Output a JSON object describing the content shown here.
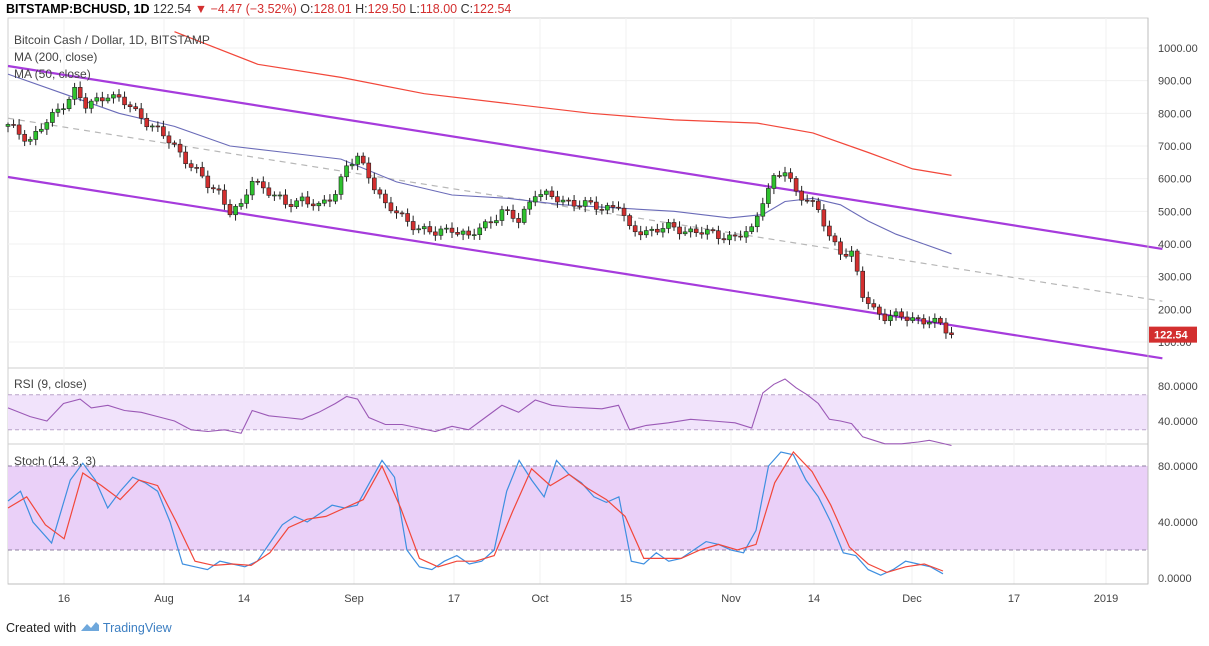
{
  "header": {
    "symbol": "BITSTAMP:BCHUSD, 1D",
    "last": "122.54",
    "change": "▼ −4.47 (−3.52%)",
    "open_label": "O:",
    "open": "128.01",
    "high_label": "H:",
    "high": "129.50",
    "low_label": "L:",
    "low": "118.00",
    "close_label": "C:",
    "close": "122.54"
  },
  "legend": {
    "title": "Bitcoin Cash / Dollar, 1D, BITSTAMP",
    "ma200": "MA (200, close)",
    "ma50": "MA (50, close)",
    "rsi": "RSI (9, close)",
    "stoch": "Stoch (14, 3, 3)"
  },
  "footer": {
    "created_with": "Created with",
    "brand": "TradingView"
  },
  "colors": {
    "up": "#2ec22e",
    "down": "#d32f2f",
    "channel": "#a63bdc",
    "ma200": "#f2473a",
    "ma50": "#6a6bb8",
    "rsi": "#9b59b6",
    "stoch_k": "#3e8fe0",
    "stoch_d": "#f2473a",
    "band_fill": "#f1e3fb",
    "stoch_fill": "#ead0f8",
    "last_price_bg": "#d32f2f"
  },
  "chart_data": {
    "type": "candlestick",
    "x_ticks": [
      "16",
      "Aug",
      "14",
      "Sep",
      "17",
      "Oct",
      "15",
      "Nov",
      "14",
      "Dec",
      "17",
      "2019"
    ],
    "y_ticks": [
      "1000.00",
      "900.00",
      "800.00",
      "700.00",
      "600.00",
      "500.00",
      "400.00",
      "300.00",
      "200.00",
      "100.00"
    ],
    "last_price_label": "122.54",
    "price_range": [
      80,
      1050
    ],
    "rsi_ticks": [
      "80.0000",
      "40.0000"
    ],
    "stoch_ticks": [
      "80.0000",
      "40.0000",
      "0.0000"
    ],
    "price_path": [
      [
        0,
        760
      ],
      [
        4,
        720
      ],
      [
        8,
        790
      ],
      [
        12,
        870
      ],
      [
        14,
        820
      ],
      [
        18,
        860
      ],
      [
        22,
        820
      ],
      [
        26,
        760
      ],
      [
        30,
        700
      ],
      [
        33,
        640
      ],
      [
        36,
        580
      ],
      [
        38,
        560
      ],
      [
        40,
        500
      ],
      [
        42,
        510
      ],
      [
        44,
        600
      ],
      [
        47,
        560
      ],
      [
        50,
        520
      ],
      [
        53,
        540
      ],
      [
        56,
        510
      ],
      [
        59,
        560
      ],
      [
        61,
        640
      ],
      [
        63,
        660
      ],
      [
        65,
        610
      ],
      [
        68,
        520
      ],
      [
        71,
        480
      ],
      [
        74,
        450
      ],
      [
        77,
        430
      ],
      [
        80,
        450
      ],
      [
        83,
        420
      ],
      [
        86,
        460
      ],
      [
        89,
        500
      ],
      [
        92,
        470
      ],
      [
        95,
        560
      ],
      [
        98,
        540
      ],
      [
        101,
        530
      ],
      [
        104,
        520
      ],
      [
        107,
        510
      ],
      [
        110,
        520
      ],
      [
        112,
        440
      ],
      [
        115,
        440
      ],
      [
        119,
        450
      ],
      [
        123,
        440
      ],
      [
        127,
        430
      ],
      [
        131,
        420
      ],
      [
        134,
        440
      ],
      [
        136,
        540
      ],
      [
        138,
        600
      ],
      [
        140,
        620
      ],
      [
        142,
        560
      ],
      [
        144,
        540
      ],
      [
        146,
        500
      ],
      [
        148,
        420
      ],
      [
        150,
        380
      ],
      [
        152,
        370
      ],
      [
        154,
        240
      ],
      [
        156,
        200
      ],
      [
        158,
        180
      ],
      [
        161,
        175
      ],
      [
        164,
        170
      ],
      [
        166,
        165
      ],
      [
        168,
        150
      ],
      [
        170,
        123
      ]
    ],
    "ma200": [
      [
        30,
        1050
      ],
      [
        45,
        950
      ],
      [
        60,
        910
      ],
      [
        75,
        860
      ],
      [
        90,
        830
      ],
      [
        105,
        800
      ],
      [
        120,
        780
      ],
      [
        135,
        770
      ],
      [
        145,
        740
      ],
      [
        155,
        680
      ],
      [
        163,
        630
      ],
      [
        170,
        610
      ]
    ],
    "ma50": [
      [
        0,
        920
      ],
      [
        10,
        860
      ],
      [
        20,
        800
      ],
      [
        30,
        760
      ],
      [
        40,
        700
      ],
      [
        50,
        680
      ],
      [
        60,
        660
      ],
      [
        70,
        590
      ],
      [
        80,
        550
      ],
      [
        90,
        540
      ],
      [
        100,
        520
      ],
      [
        110,
        510
      ],
      [
        120,
        500
      ],
      [
        130,
        480
      ],
      [
        136,
        490
      ],
      [
        140,
        530
      ],
      [
        145,
        540
      ],
      [
        150,
        520
      ],
      [
        155,
        470
      ],
      [
        160,
        430
      ],
      [
        165,
        400
      ],
      [
        170,
        370
      ]
    ],
    "channel_upper": [
      [
        0,
        945
      ],
      [
        208,
        385
      ]
    ],
    "channel_lower": [
      [
        0,
        605
      ],
      [
        208,
        50
      ]
    ],
    "dashed_mid": [
      [
        0,
        785
      ],
      [
        208,
        225
      ]
    ],
    "rsi_band": [
      30,
      70
    ],
    "rsi": [
      [
        0,
        55
      ],
      [
        4,
        45
      ],
      [
        7,
        40
      ],
      [
        10,
        60
      ],
      [
        13,
        65
      ],
      [
        15,
        55
      ],
      [
        18,
        58
      ],
      [
        21,
        52
      ],
      [
        24,
        50
      ],
      [
        27,
        45
      ],
      [
        30,
        40
      ],
      [
        33,
        30
      ],
      [
        36,
        28
      ],
      [
        39,
        30
      ],
      [
        42,
        26
      ],
      [
        44,
        52
      ],
      [
        47,
        46
      ],
      [
        50,
        44
      ],
      [
        53,
        42
      ],
      [
        56,
        50
      ],
      [
        59,
        60
      ],
      [
        61,
        68
      ],
      [
        63,
        65
      ],
      [
        65,
        44
      ],
      [
        68,
        36
      ],
      [
        71,
        36
      ],
      [
        74,
        32
      ],
      [
        77,
        28
      ],
      [
        80,
        34
      ],
      [
        83,
        30
      ],
      [
        86,
        44
      ],
      [
        89,
        58
      ],
      [
        92,
        50
      ],
      [
        95,
        64
      ],
      [
        98,
        58
      ],
      [
        101,
        56
      ],
      [
        104,
        55
      ],
      [
        107,
        54
      ],
      [
        110,
        58
      ],
      [
        112,
        30
      ],
      [
        115,
        35
      ],
      [
        119,
        38
      ],
      [
        123,
        42
      ],
      [
        127,
        40
      ],
      [
        131,
        38
      ],
      [
        134,
        32
      ],
      [
        136,
        72
      ],
      [
        138,
        82
      ],
      [
        140,
        88
      ],
      [
        142,
        78
      ],
      [
        144,
        70
      ],
      [
        146,
        60
      ],
      [
        148,
        42
      ],
      [
        150,
        40
      ],
      [
        152,
        37
      ],
      [
        154,
        22
      ],
      [
        156,
        18
      ],
      [
        158,
        14
      ],
      [
        161,
        14
      ],
      [
        164,
        16
      ],
      [
        166,
        18
      ],
      [
        168,
        15
      ],
      [
        170,
        12
      ]
    ],
    "stoch_band": [
      20,
      80
    ],
    "stoch_k": [
      [
        0,
        55
      ],
      [
        2,
        62
      ],
      [
        4,
        40
      ],
      [
        7,
        25
      ],
      [
        10,
        70
      ],
      [
        12,
        82
      ],
      [
        14,
        70
      ],
      [
        16,
        50
      ],
      [
        18,
        62
      ],
      [
        20,
        72
      ],
      [
        22,
        68
      ],
      [
        24,
        62
      ],
      [
        26,
        40
      ],
      [
        28,
        10
      ],
      [
        30,
        8
      ],
      [
        32,
        6
      ],
      [
        34,
        12
      ],
      [
        36,
        10
      ],
      [
        38,
        8
      ],
      [
        40,
        12
      ],
      [
        42,
        25
      ],
      [
        44,
        38
      ],
      [
        46,
        44
      ],
      [
        48,
        40
      ],
      [
        50,
        46
      ],
      [
        52,
        52
      ],
      [
        54,
        50
      ],
      [
        56,
        52
      ],
      [
        58,
        68
      ],
      [
        60,
        84
      ],
      [
        62,
        72
      ],
      [
        64,
        20
      ],
      [
        66,
        8
      ],
      [
        68,
        6
      ],
      [
        70,
        12
      ],
      [
        72,
        16
      ],
      [
        74,
        10
      ],
      [
        76,
        12
      ],
      [
        78,
        20
      ],
      [
        80,
        62
      ],
      [
        82,
        84
      ],
      [
        84,
        70
      ],
      [
        86,
        58
      ],
      [
        88,
        84
      ],
      [
        90,
        74
      ],
      [
        92,
        68
      ],
      [
        94,
        58
      ],
      [
        96,
        54
      ],
      [
        98,
        58
      ],
      [
        100,
        12
      ],
      [
        102,
        10
      ],
      [
        104,
        18
      ],
      [
        106,
        12
      ],
      [
        108,
        14
      ],
      [
        110,
        20
      ],
      [
        112,
        26
      ],
      [
        114,
        24
      ],
      [
        116,
        20
      ],
      [
        118,
        18
      ],
      [
        120,
        34
      ],
      [
        122,
        80
      ],
      [
        124,
        90
      ],
      [
        126,
        88
      ],
      [
        128,
        70
      ],
      [
        130,
        58
      ],
      [
        132,
        40
      ],
      [
        134,
        18
      ],
      [
        136,
        16
      ],
      [
        138,
        6
      ],
      [
        140,
        2
      ],
      [
        142,
        6
      ],
      [
        144,
        12
      ],
      [
        146,
        10
      ],
      [
        148,
        8
      ],
      [
        150,
        3
      ]
    ],
    "stoch_d": [
      [
        0,
        50
      ],
      [
        3,
        58
      ],
      [
        6,
        38
      ],
      [
        9,
        28
      ],
      [
        12,
        75
      ],
      [
        15,
        66
      ],
      [
        18,
        56
      ],
      [
        21,
        70
      ],
      [
        24,
        66
      ],
      [
        27,
        40
      ],
      [
        30,
        12
      ],
      [
        33,
        9
      ],
      [
        36,
        10
      ],
      [
        39,
        9
      ],
      [
        42,
        18
      ],
      [
        45,
        36
      ],
      [
        48,
        42
      ],
      [
        51,
        44
      ],
      [
        54,
        50
      ],
      [
        57,
        56
      ],
      [
        60,
        80
      ],
      [
        63,
        50
      ],
      [
        66,
        14
      ],
      [
        69,
        8
      ],
      [
        72,
        12
      ],
      [
        75,
        12
      ],
      [
        78,
        16
      ],
      [
        81,
        48
      ],
      [
        84,
        78
      ],
      [
        87,
        66
      ],
      [
        90,
        74
      ],
      [
        93,
        64
      ],
      [
        96,
        56
      ],
      [
        99,
        44
      ],
      [
        102,
        14
      ],
      [
        105,
        14
      ],
      [
        108,
        14
      ],
      [
        111,
        20
      ],
      [
        114,
        24
      ],
      [
        117,
        20
      ],
      [
        120,
        24
      ],
      [
        123,
        68
      ],
      [
        126,
        90
      ],
      [
        129,
        76
      ],
      [
        132,
        52
      ],
      [
        135,
        22
      ],
      [
        138,
        10
      ],
      [
        141,
        4
      ],
      [
        144,
        8
      ],
      [
        147,
        10
      ],
      [
        150,
        5
      ]
    ]
  }
}
